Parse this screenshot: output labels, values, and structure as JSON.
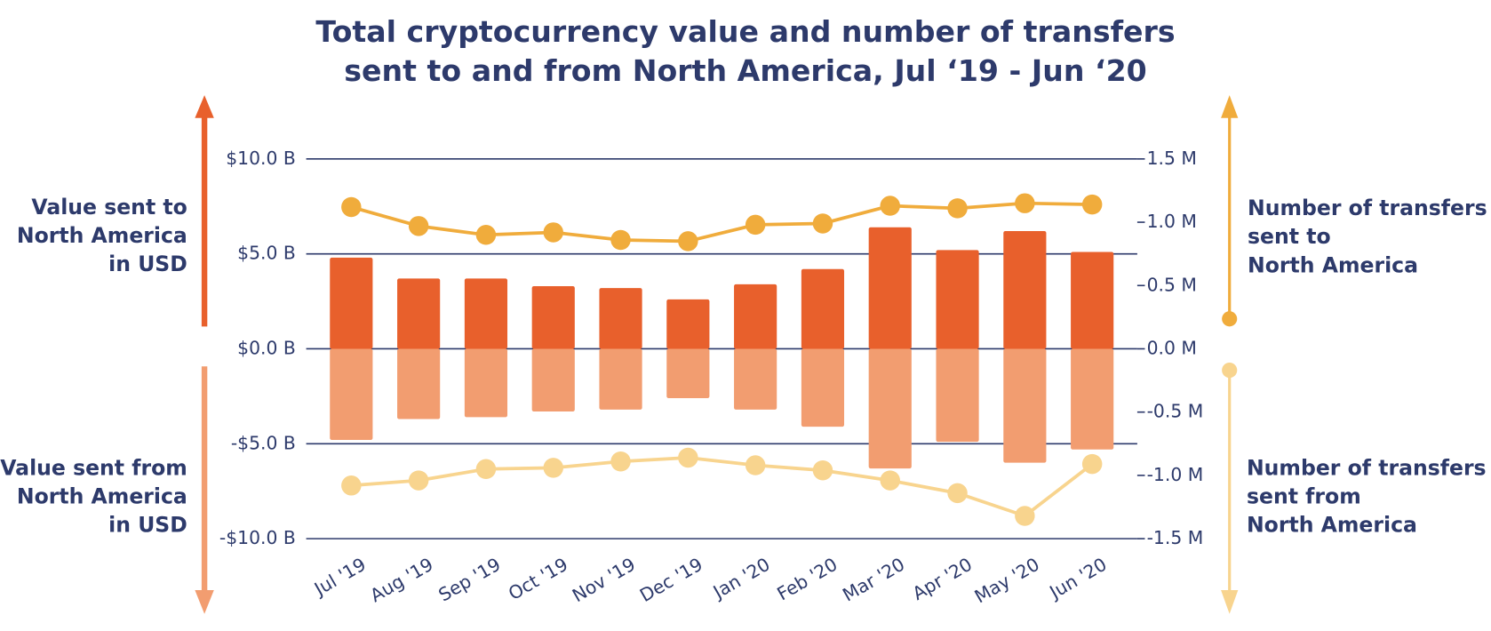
{
  "chart_data": {
    "type": "bar",
    "title": "Total cryptocurrency value and number of transfers\nsent to and from North America, Jul ‘19 - Jun ‘20",
    "categories": [
      "Jul '19",
      "Aug '19",
      "Sep '19",
      "Oct '19",
      "Nov '19",
      "Dec '19",
      "Jan '20",
      "Feb '20",
      "Mar '20",
      "Apr '20",
      "May '20",
      "Jun '20"
    ],
    "series": [
      {
        "name": "Value sent to\nNorth America\nin USD",
        "type": "bar",
        "color": "#e8602c",
        "values": [
          4.8,
          3.7,
          3.7,
          3.3,
          3.2,
          2.6,
          3.4,
          4.2,
          6.4,
          5.2,
          6.2,
          5.1
        ]
      },
      {
        "name": "Value sent from\nNorth America\nin USD",
        "type": "bar",
        "color": "#f29d70",
        "values": [
          -4.8,
          -3.7,
          -3.6,
          -3.3,
          -3.2,
          -2.6,
          -3.2,
          -4.1,
          -6.3,
          -4.9,
          -6.0,
          -5.3
        ]
      },
      {
        "name": "Number of transfers\nsent to\nNorth America",
        "type": "line",
        "axis": "y2",
        "color": "#f0ac3c",
        "values": [
          1.12,
          0.97,
          0.9,
          0.92,
          0.86,
          0.85,
          0.98,
          0.99,
          1.13,
          1.11,
          1.15,
          1.14
        ]
      },
      {
        "name": "Number of transfers\nsent from\nNorth America",
        "type": "line",
        "axis": "y2",
        "color": "#f8d48e",
        "values": [
          -1.08,
          -1.04,
          -0.95,
          -0.94,
          -0.89,
          -0.86,
          -0.92,
          -0.96,
          -1.04,
          -1.14,
          -1.32,
          -0.91
        ]
      }
    ],
    "ylim": [
      -10,
      10
    ],
    "yticks": [
      {
        "value": -10,
        "label": "-$10.0 B"
      },
      {
        "value": -5,
        "label": "-$5.0 B"
      },
      {
        "value": 0,
        "label": "$0.0 B"
      },
      {
        "value": 5,
        "label": "$5.0 B"
      },
      {
        "value": 10,
        "label": "$10.0 B"
      }
    ],
    "y2lim": [
      -1.5,
      1.5
    ],
    "y2ticks": [
      {
        "value": -1.5,
        "label": "-1.5 M"
      },
      {
        "value": -1,
        "label": "-1.0 M"
      },
      {
        "value": -0.5,
        "label": "-0.5 M"
      },
      {
        "value": 0,
        "label": "0.0 M"
      },
      {
        "value": 0.5,
        "label": "0.5 M"
      },
      {
        "value": 1,
        "label": "1.0 M"
      },
      {
        "value": 1.5,
        "label": "1.5 M"
      }
    ],
    "grid": true
  }
}
